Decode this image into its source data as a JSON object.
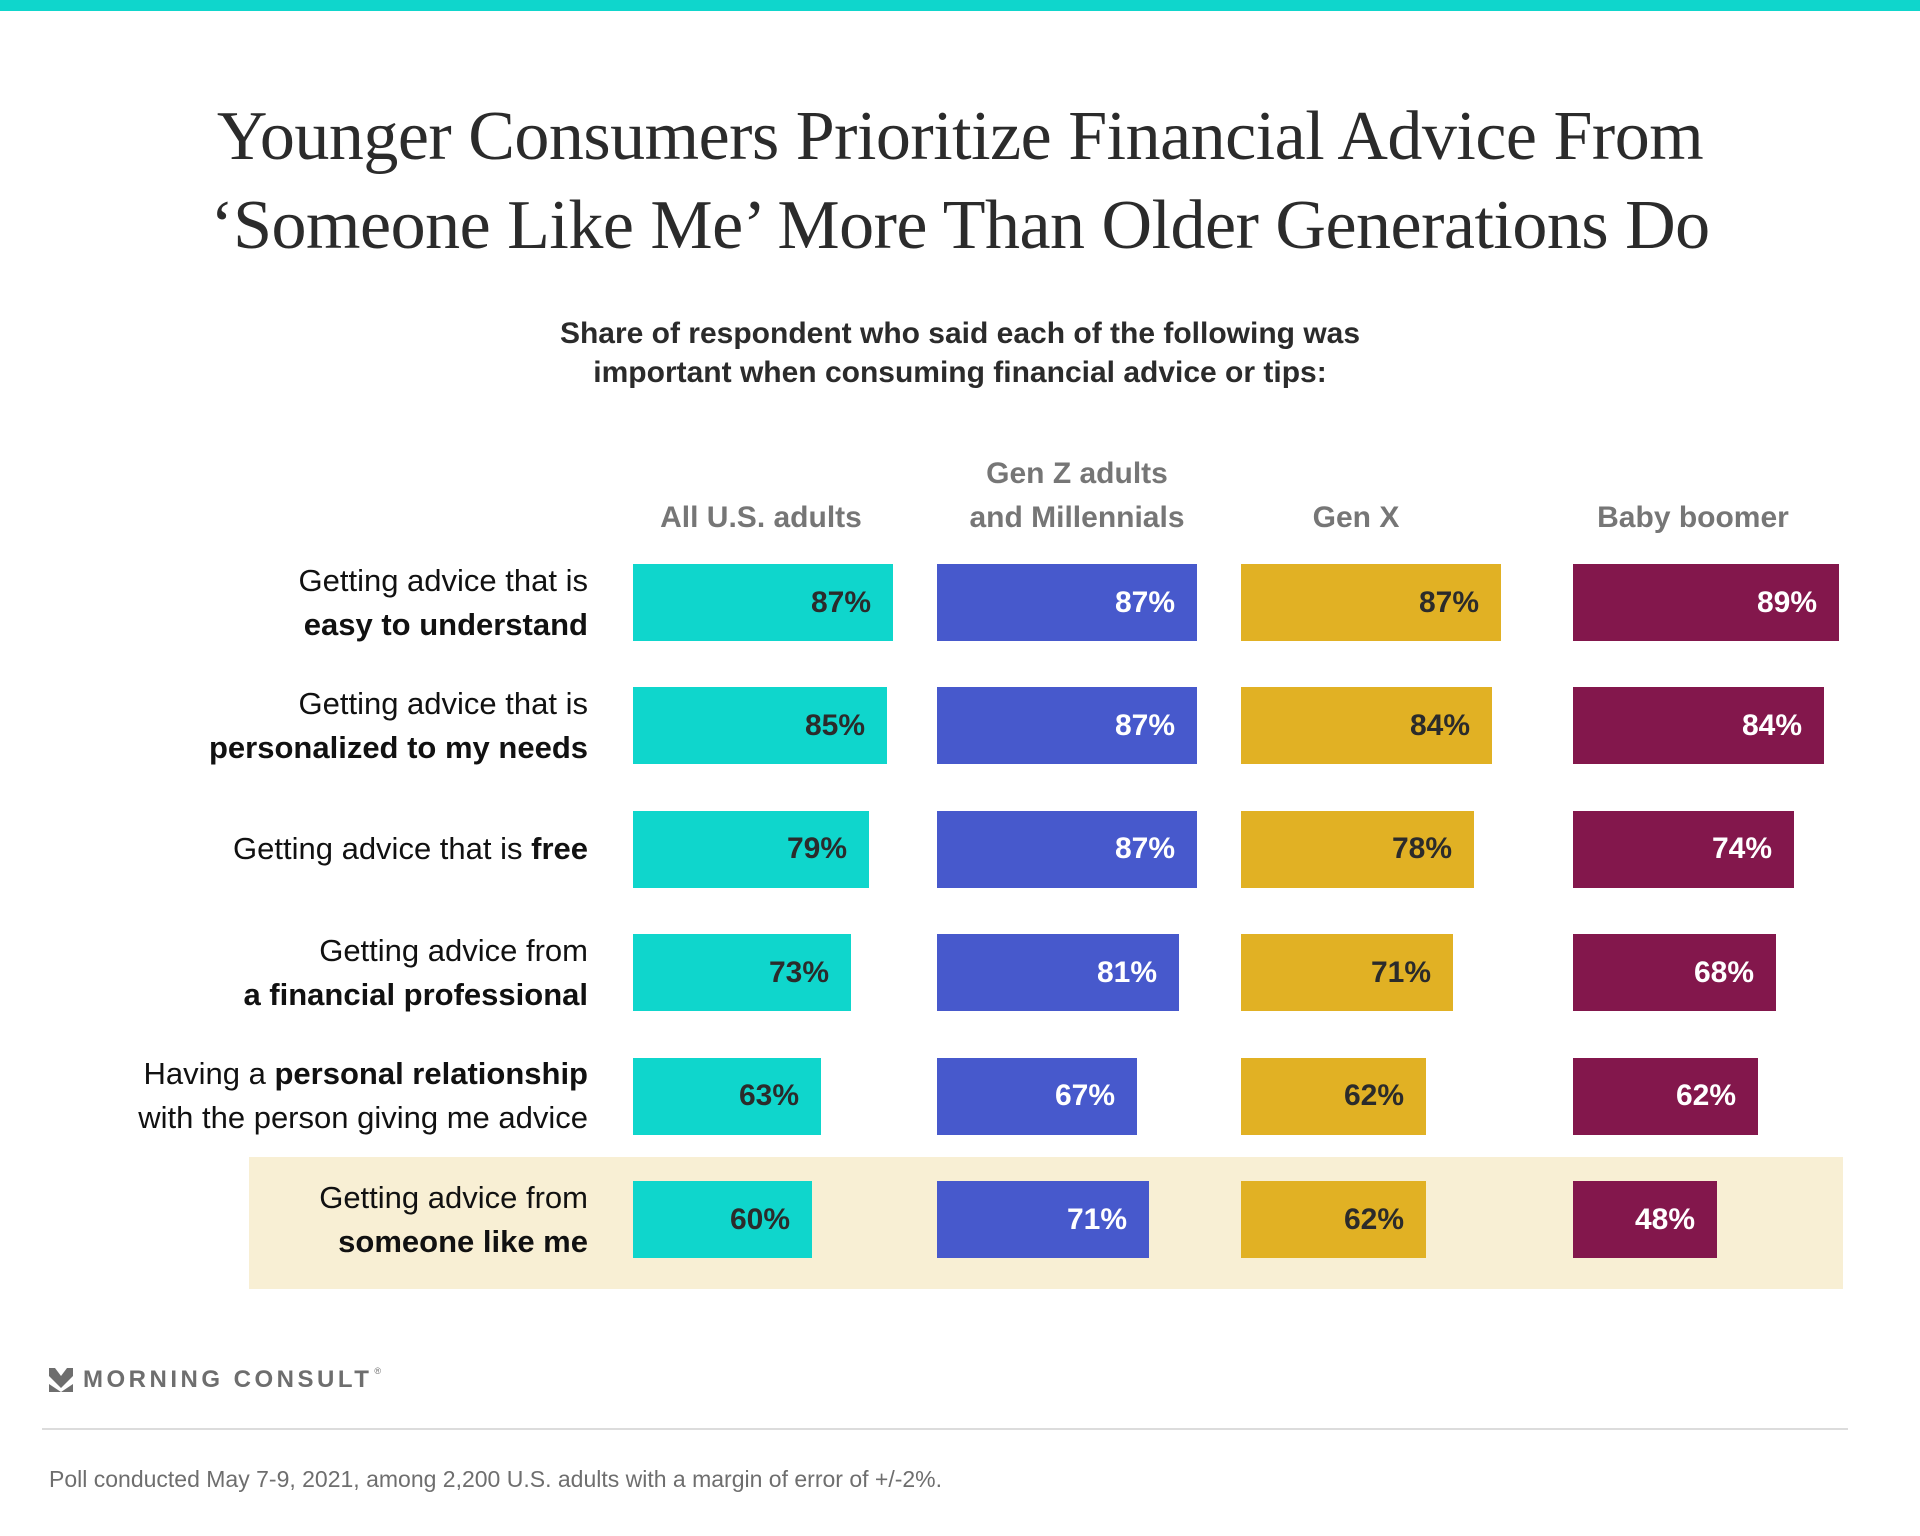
{
  "colors": {
    "top_bar": "#0fd6cc",
    "highlight": "#f8efd4",
    "label_dark": "#2b2b2b",
    "label_light": "#ffffff"
  },
  "title_lines": [
    "Younger Consumers Prioritize Financial Advice From",
    "‘Someone Like Me’ More Than Older Generations Do"
  ],
  "subtitle_lines": [
    "Share of respondent who said each of the following was",
    "important when consuming financial advice or tips:"
  ],
  "chart_data": {
    "type": "bar",
    "orientation": "horizontal-small-multiples",
    "title": "Younger Consumers Prioritize Financial Advice From ‘Someone Like Me’ More Than Older Generations Do",
    "subtitle": "Share of respondent who said each of the following was important when consuming financial advice or tips:",
    "unit": "%",
    "xlim": [
      0,
      100
    ],
    "grid": false,
    "highlighted_category_index": 5,
    "categories": [
      {
        "plain": "Getting advice that is",
        "bold": "easy to understand",
        "layout": "two-line"
      },
      {
        "plain": "Getting advice that is",
        "bold": "personalized to my needs",
        "layout": "two-line"
      },
      {
        "plain": "Getting advice that is ",
        "bold": "free",
        "layout": "inline"
      },
      {
        "plain": "Getting advice from",
        "bold": "a financial professional",
        "layout": "two-line"
      },
      {
        "plain_before": "Having a ",
        "bold": "personal relationship",
        "plain_after": "with the person giving me advice",
        "layout": "bold-middle"
      },
      {
        "plain": "Getting advice from",
        "bold": "someone like me",
        "layout": "two-line"
      }
    ],
    "series": [
      {
        "name": "All U.S. adults",
        "header_lines": [
          "All U.S. adults"
        ],
        "color": "#0fd6cc",
        "label_color": "#2b2b2b",
        "values": [
          87,
          85,
          79,
          73,
          63,
          60
        ]
      },
      {
        "name": "Gen Z adults and Millennials",
        "header_lines": [
          "Gen Z adults",
          "and Millennials"
        ],
        "color": "#4759cc",
        "label_color": "#ffffff",
        "values": [
          87,
          87,
          87,
          81,
          67,
          71
        ]
      },
      {
        "name": "Gen X",
        "header_lines": [
          "Gen X"
        ],
        "color": "#e1b124",
        "label_color": "#2b2b2b",
        "values": [
          87,
          84,
          78,
          71,
          62,
          62
        ]
      },
      {
        "name": "Baby boomer",
        "header_lines": [
          "Baby boomer"
        ],
        "color": "#83174c",
        "label_color": "#ffffff",
        "values": [
          89,
          84,
          74,
          68,
          62,
          48
        ]
      }
    ]
  },
  "brand": {
    "logo_icon": "morning-consult-chevron-icon",
    "name": "MORNING CONSULT",
    "registered_mark": "®"
  },
  "footnote": "Poll conducted May 7-9, 2021, among 2,200 U.S. adults with a margin of error of +/-2%."
}
